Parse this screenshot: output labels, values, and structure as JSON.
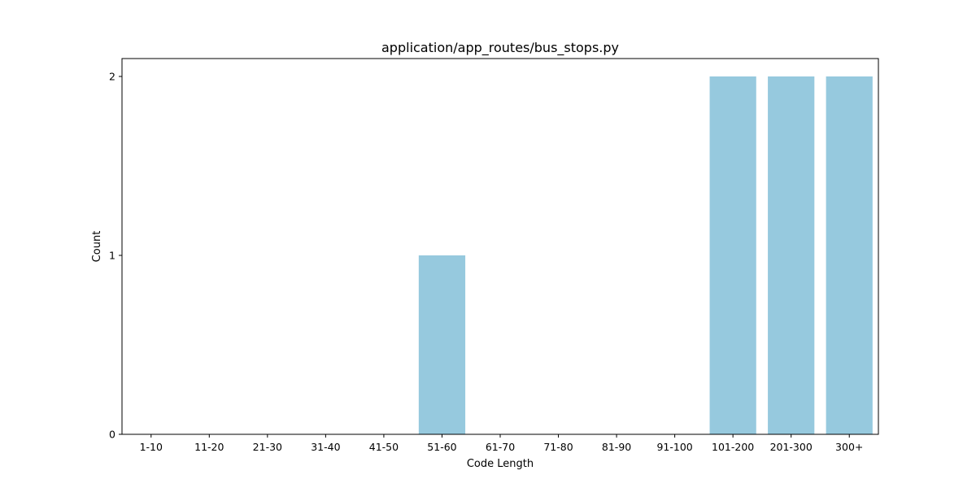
{
  "chart_data": {
    "type": "bar",
    "title": "application/app_routes/bus_stops.py",
    "xlabel": "Code Length",
    "ylabel": "Count",
    "categories": [
      "1-10",
      "11-20",
      "21-30",
      "31-40",
      "41-50",
      "51-60",
      "61-70",
      "71-80",
      "81-90",
      "91-100",
      "101-200",
      "201-300",
      "300+"
    ],
    "values": [
      0,
      0,
      0,
      0,
      0,
      1,
      0,
      0,
      0,
      0,
      2,
      2,
      2
    ],
    "ylim": [
      0,
      2.1
    ],
    "yticks": [
      0,
      1,
      2
    ],
    "grid": false,
    "legend": "none",
    "bar_color": "#96c9de"
  }
}
